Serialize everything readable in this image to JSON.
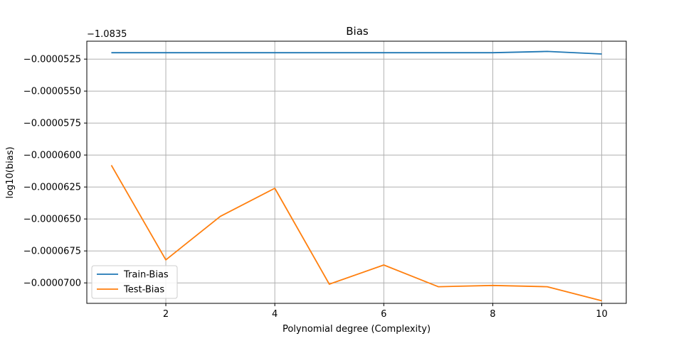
{
  "chart_data": {
    "type": "line",
    "title": "Bias",
    "xlabel": "Polynomial degree (Complexity)",
    "ylabel": "log10(bias)",
    "y_offset_label": "−1.0835",
    "x": [
      1,
      2,
      3,
      4,
      5,
      6,
      7,
      8,
      9,
      10
    ],
    "x_ticks": [
      2,
      4,
      6,
      8,
      10
    ],
    "x_tick_labels": [
      "2",
      "4",
      "6",
      "8",
      "10"
    ],
    "xlim": [
      0.55,
      10.45
    ],
    "y_ticks": [
      -5.25e-05,
      -5.5e-05,
      -5.75e-05,
      -6e-05,
      -6.25e-05,
      -6.5e-05,
      -6.75e-05,
      -7e-05
    ],
    "y_tick_labels": [
      "−0.0000525",
      "−0.0000550",
      "−0.0000575",
      "−0.0000600",
      "−0.0000625",
      "−0.0000650",
      "−0.0000675",
      "−0.0000700"
    ],
    "ylim": [
      -7.16e-05,
      -5.11e-05
    ],
    "grid": true,
    "legend_position": "lower-left",
    "series": [
      {
        "name": "Train-Bias",
        "color": "#1f77b4",
        "values": [
          -5.2e-05,
          -5.2e-05,
          -5.2e-05,
          -5.2e-05,
          -5.2e-05,
          -5.2e-05,
          -5.2e-05,
          -5.2e-05,
          -5.19e-05,
          -5.21e-05
        ]
      },
      {
        "name": "Test-Bias",
        "color": "#ff7f0e",
        "values": [
          -6.08e-05,
          -6.82e-05,
          -6.48e-05,
          -6.26e-05,
          -7.01e-05,
          -6.86e-05,
          -7.03e-05,
          -7.02e-05,
          -7.03e-05,
          -7.14e-05
        ]
      }
    ]
  }
}
